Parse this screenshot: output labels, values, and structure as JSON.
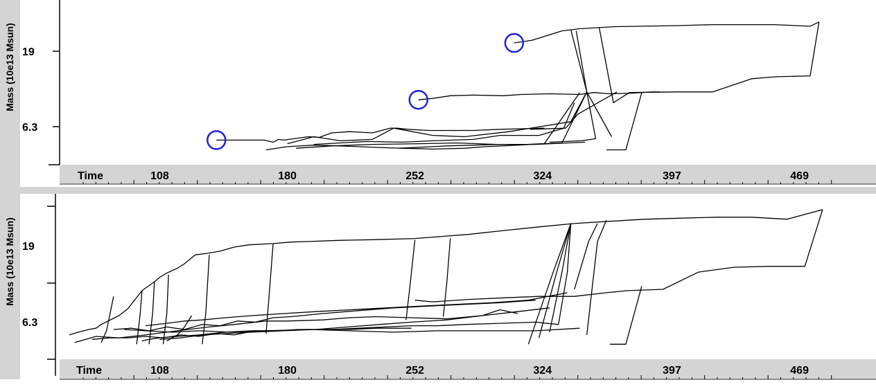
{
  "chart_data": [
    {
      "type": "line",
      "ylabel": "Mass (10e13 Msun)",
      "xlabel": "Time",
      "xticks": [
        "108",
        "180",
        "252",
        "324",
        "397",
        "469"
      ],
      "yticks": [
        "19",
        "6.3"
      ],
      "xlim": [
        57,
        493
      ],
      "ylog": true,
      "ylim": [
        2.8,
        36
      ],
      "markers": [
        {
          "x": 140,
          "y": 4.25
        },
        {
          "x": 254,
          "y": 8.4
        },
        {
          "x": 308,
          "y": 22
        }
      ],
      "series": [
        {
          "x": [
            308,
            318,
            335,
            345,
            365,
            400,
            420,
            442,
            455,
            475,
            480
          ],
          "y": [
            22,
            23,
            27,
            28,
            29,
            29.5,
            30,
            30,
            30,
            29.2,
            31.4
          ]
        },
        {
          "x": [
            356,
            364,
            373,
            400,
            420,
            442,
            455,
            475,
            480
          ],
          "y": [
            28.5,
            8,
            9.5,
            9.6,
            9.6,
            12,
            12.4,
            12.6,
            31.4
          ]
        },
        {
          "x": [
            254,
            262,
            272,
            285,
            302,
            312,
            328,
            345,
            353,
            362,
            374,
            386,
            390
          ],
          "y": [
            8.4,
            8.6,
            9,
            9.1,
            9,
            9.2,
            9.3,
            9.2,
            9.5,
            9.3,
            9.4,
            9.6,
            9.6
          ]
        },
        {
          "x": [
            140,
            158,
            167,
            172,
            175,
            178,
            192,
            198,
            205,
            215,
            228,
            238,
            242,
            248,
            260,
            272,
            285,
            300,
            325
          ],
          "y": [
            4.25,
            4.25,
            4.25,
            4.1,
            4.3,
            4.25,
            4.5,
            4.45,
            4.8,
            4.9,
            4.8,
            5.2,
            5.2,
            5.1,
            5,
            5,
            5,
            5.1,
            5.2
          ]
        },
        {
          "x": [
            168,
            180,
            195,
            210,
            232,
            245,
            262,
            280,
            292,
            310,
            325,
            345
          ],
          "y": [
            3.6,
            3.8,
            3.9,
            3.85,
            3.75,
            3.7,
            3.65,
            3.7,
            3.8,
            3.9,
            4.0,
            9.5
          ]
        },
        {
          "x": [
            180,
            195,
            210,
            228,
            240,
            262,
            280,
            305,
            340,
            349
          ],
          "y": [
            4.0,
            4.5,
            4.2,
            4.3,
            5.2,
            4.6,
            4.5,
            4.9,
            5.8,
            9.6
          ]
        },
        {
          "x": [
            185,
            205,
            228,
            255,
            275,
            298,
            315,
            335,
            349
          ],
          "y": [
            3.7,
            3.85,
            3.95,
            4.0,
            4.05,
            3.95,
            3.95,
            4.05,
            9.6
          ]
        },
        {
          "x": [
            195,
            225,
            245,
            262,
            285,
            300,
            322,
            336,
            342
          ],
          "y": [
            3.95,
            4.15,
            4.1,
            4.2,
            4.3,
            4.6,
            4.6,
            5.2,
            8.0
          ]
        },
        {
          "x": [
            243,
            270,
            300,
            320,
            348
          ],
          "y": [
            3.7,
            3.85,
            3.95,
            3.95,
            4.1
          ]
        },
        {
          "x": [
            328,
            346,
            354,
            349,
            340
          ],
          "y": [
            4.1,
            4.2,
            4.35,
            9.6,
            27.5
          ]
        },
        {
          "x": [
            317,
            337,
            344,
            366
          ],
          "y": [
            5.1,
            5.2,
            6.6,
            9.6
          ]
        },
        {
          "x": [
            360,
            371,
            380
          ],
          "y": [
            3.6,
            3.6,
            9.5
          ]
        },
        {
          "x": [
            363,
            349,
            343
          ],
          "y": [
            4.5,
            9.6,
            27
          ]
        }
      ]
    },
    {
      "type": "line",
      "ylabel": "Mass (10e13 Msun)",
      "xlabel": "Time",
      "xticks": [
        "108",
        "180",
        "252",
        "324",
        "397",
        "469"
      ],
      "yticks": [
        "19",
        "6.3"
      ],
      "xlim": [
        57,
        493
      ],
      "ylog": true,
      "ylim": [
        2.8,
        36
      ],
      "series": [
        {
          "x": [
            57,
            62,
            68,
            72,
            75,
            85,
            90,
            98,
            105,
            108,
            112,
            118,
            122,
            128,
            135,
            142,
            150,
            158,
            168,
            172,
            182,
            192,
            210,
            228,
            252,
            262,
            282,
            302,
            322,
            342,
            362,
            382,
            402,
            422,
            442,
            462,
            482
          ],
          "y": [
            4.2,
            4.4,
            4.6,
            4.7,
            5.0,
            5.8,
            6.5,
            8.8,
            10.2,
            11,
            11.8,
            12.8,
            13.8,
            16,
            16.4,
            17.0,
            18.2,
            18.9,
            19.2,
            19.3,
            19.8,
            20.0,
            20.4,
            20.6,
            21,
            21.5,
            22.5,
            24.0,
            25.5,
            27.0,
            28.0,
            29.0,
            29.5,
            30.0,
            30.0,
            29.0,
            34.0
          ]
        },
        {
          "x": [
            252,
            262,
            282,
            302,
            322,
            342,
            360,
            372,
            392,
            412,
            432,
            452,
            472,
            482
          ],
          "y": [
            7.5,
            7.3,
            7.6,
            7.8,
            8.0,
            8.0,
            8.5,
            8.8,
            9.0,
            12,
            13,
            13.2,
            13.2,
            34
          ]
        },
        {
          "x": [
            98,
            102,
            108,
            118,
            130,
            145,
            160,
            176,
            190,
            205,
            220,
            235,
            250,
            265,
            280,
            300,
            320,
            333
          ],
          "y": [
            3.8,
            3.9,
            4.0,
            4.1,
            4.2,
            4.4,
            4.5,
            4.5,
            4.6,
            4.6,
            4.7,
            4.8,
            4.9,
            4.9,
            5.0,
            5.1,
            5.2,
            5.0
          ]
        },
        {
          "x": [
            60,
            72,
            85,
            100,
            112,
            124,
            136,
            150,
            168,
            180,
            200,
            215,
            230,
            250,
            270,
            290,
            300,
            310
          ],
          "y": [
            3.7,
            4.1,
            4.0,
            4.2,
            4.4,
            4.6,
            4.8,
            5.0,
            5.3,
            5.3,
            5.4,
            5.6,
            5.7,
            5.6,
            5.5,
            5.8,
            6.4,
            6.0
          ]
        },
        {
          "x": [
            70,
            80,
            90,
            100,
            110,
            120,
            130,
            140,
            150,
            162,
            174,
            186,
            200,
            215,
            230,
            250
          ],
          "y": [
            3.9,
            4.0,
            4.0,
            4.1,
            4.0,
            4.2,
            4.1,
            4.3,
            4.2,
            4.5,
            4.5,
            4.6,
            4.6,
            4.6,
            4.7,
            4.7
          ]
        },
        {
          "x": [
            82,
            92,
            102,
            112,
            122,
            132,
            142,
            152,
            162,
            172,
            182,
            200,
            220,
            240,
            260,
            280,
            300,
            320
          ],
          "y": [
            4.6,
            4.7,
            4.5,
            4.8,
            4.6,
            5.0,
            4.9,
            5.3,
            5.2,
            5.6,
            5.7,
            6.0,
            6.3,
            6.6,
            6.8,
            7.0,
            7.2,
            7.5
          ]
        },
        {
          "x": [
            100,
            112,
            122,
            132,
            145,
            160,
            178,
            196,
            216,
            236,
            256,
            276,
            296,
            316,
            338
          ],
          "y": [
            4.9,
            5.1,
            5.3,
            5.4,
            5.6,
            5.8,
            6.0,
            6.2,
            6.4,
            6.6,
            6.8,
            7.0,
            7.2,
            7.5,
            8.5
          ]
        },
        {
          "x": [
            88,
            100,
            115,
            130,
            148,
            168,
            192,
            215,
            240,
            265,
            290,
            320,
            345
          ],
          "y": [
            4.6,
            4.5,
            4.4,
            4.5,
            4.4,
            4.5,
            4.6,
            4.5,
            4.4,
            4.5,
            4.5,
            4.5,
            4.7
          ]
        },
        {
          "x": [
            108,
            120,
            132,
            146,
            160,
            178,
            196,
            214,
            232,
            250,
            270,
            290,
            310,
            328
          ],
          "y": [
            3.9,
            4.0,
            4.2,
            4.3,
            4.4,
            4.5,
            4.6,
            4.8,
            5.0,
            5.2,
            5.4,
            5.8,
            6.2,
            6.6
          ]
        },
        {
          "x": [
            112,
            118,
            122,
            126
          ],
          "y": [
            3.8,
            4.2,
            4.8,
            5.8
          ]
        },
        {
          "x": [
            75,
            78,
            80,
            82
          ],
          "y": [
            3.7,
            4.5,
            6.0,
            8.0
          ]
        },
        {
          "x": [
            95,
            97,
            98
          ],
          "y": [
            3.6,
            6.0,
            8.8
          ]
        },
        {
          "x": [
            102,
            104,
            105
          ],
          "y": [
            3.6,
            6.0,
            10.2
          ]
        },
        {
          "x": [
            110,
            112,
            113
          ],
          "y": [
            3.6,
            6.0,
            11.5
          ]
        },
        {
          "x": [
            132,
            134,
            136
          ],
          "y": [
            3.6,
            6.0,
            16.0
          ]
        },
        {
          "x": [
            168,
            170,
            172
          ],
          "y": [
            4.3,
            9.0,
            19.3
          ]
        },
        {
          "x": [
            247,
            249,
            252
          ],
          "y": [
            5.4,
            9.0,
            20.5
          ]
        },
        {
          "x": [
            268,
            270,
            272
          ],
          "y": [
            5.7,
            10.0,
            21.0
          ]
        },
        {
          "x": [
            316,
            330,
            340
          ],
          "y": [
            3.6,
            12.0,
            27.0
          ]
        },
        {
          "x": [
            322,
            332,
            340
          ],
          "y": [
            4.0,
            12.0,
            27.0
          ]
        },
        {
          "x": [
            328,
            335,
            340
          ],
          "y": [
            4.4,
            12.0,
            27.0
          ]
        },
        {
          "x": [
            333,
            338,
            340
          ],
          "y": [
            5.0,
            12.0,
            27.0
          ]
        },
        {
          "x": [
            342,
            350,
            355
          ],
          "y": [
            9.0,
            20.0,
            27.0
          ]
        },
        {
          "x": [
            349,
            355,
            360
          ],
          "y": [
            4.2,
            20.0,
            28.5
          ]
        },
        {
          "x": [
            362,
            371,
            380
          ],
          "y": [
            3.6,
            3.6,
            9.5
          ]
        }
      ]
    }
  ]
}
